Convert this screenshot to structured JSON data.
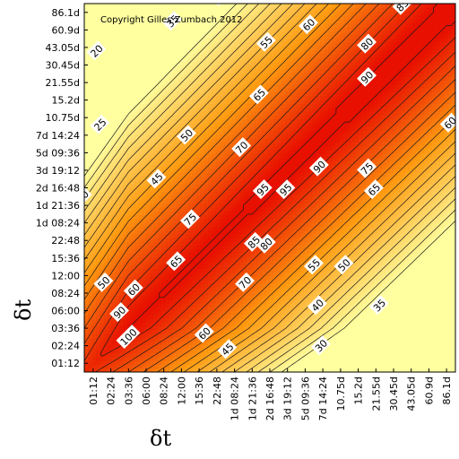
{
  "chart_data": {
    "type": "heatmap",
    "copyright": "Copyright Gilles Zumbach 2012",
    "xlabel": "δt",
    "ylabel": "δt",
    "ticks": [
      "01:12",
      "02:24",
      "03:36",
      "06:00",
      "08:24",
      "12:00",
      "15:36",
      "22:48",
      "1d 08:24",
      "1d 21:36",
      "2d 16:48",
      "3d 19:12",
      "5d 09:36",
      "7d 14:24",
      "10.75d",
      "15.2d",
      "21.55d",
      "30.45d",
      "43.05d",
      "60.9d",
      "86.1d"
    ],
    "contour_levels": [
      20,
      25,
      30,
      35,
      40,
      45,
      50,
      55,
      60,
      65,
      70,
      75,
      80,
      85,
      90,
      95,
      100
    ],
    "colorscale": {
      "low": "#ffffa0",
      "mid": "#ff9a10",
      "high": "#e81000"
    },
    "contour_labels": [
      {
        "value": "20",
        "x": 0.2,
        "y": 17.8
      },
      {
        "value": "35",
        "x": 4.5,
        "y": 19.5
      },
      {
        "value": "40",
        "x": 7.2,
        "y": 20.9
      },
      {
        "value": "55",
        "x": 9.8,
        "y": 18.3
      },
      {
        "value": "60",
        "x": 12.2,
        "y": 19.3
      },
      {
        "value": "85",
        "x": 17.5,
        "y": 20.4
      },
      {
        "value": "80",
        "x": 15.5,
        "y": 18.2
      },
      {
        "value": "90",
        "x": 15.5,
        "y": 16.3
      },
      {
        "value": "65",
        "x": 9.4,
        "y": 15.3
      },
      {
        "value": "25",
        "x": 0.4,
        "y": 13.6
      },
      {
        "value": "50",
        "x": 5.3,
        "y": 13.0
      },
      {
        "value": "70",
        "x": 8.4,
        "y": 12.3
      },
      {
        "value": "60",
        "x": 20.2,
        "y": 13.7
      },
      {
        "value": "90",
        "x": 12.8,
        "y": 11.2
      },
      {
        "value": "75",
        "x": 15.5,
        "y": 11.1
      },
      {
        "value": "65",
        "x": 15.9,
        "y": 9.9
      },
      {
        "value": "45",
        "x": 3.6,
        "y": 10.5
      },
      {
        "value": "95",
        "x": 9.6,
        "y": 9.9
      },
      {
        "value": "95",
        "x": 10.9,
        "y": 9.9
      },
      {
        "value": "30",
        "x": -0.6,
        "y": 9.5
      },
      {
        "value": "75",
        "x": 5.5,
        "y": 8.2
      },
      {
        "value": "85",
        "x": 9.1,
        "y": 6.9
      },
      {
        "value": "80",
        "x": 9.8,
        "y": 6.8
      },
      {
        "value": "65",
        "x": 4.7,
        "y": 5.8
      },
      {
        "value": "55",
        "x": 12.5,
        "y": 5.6
      },
      {
        "value": "50",
        "x": 14.2,
        "y": 5.6
      },
      {
        "value": "70",
        "x": 8.6,
        "y": 4.6
      },
      {
        "value": "50",
        "x": 0.6,
        "y": 4.6
      },
      {
        "value": "60",
        "x": 2.3,
        "y": 4.2
      },
      {
        "value": "90",
        "x": 1.5,
        "y": 2.9
      },
      {
        "value": "40",
        "x": 12.7,
        "y": 3.3
      },
      {
        "value": "35",
        "x": 16.2,
        "y": 3.3
      },
      {
        "value": "60",
        "x": 6.3,
        "y": 1.7
      },
      {
        "value": "100",
        "x": 2.0,
        "y": 1.5
      },
      {
        "value": "45",
        "x": 7.6,
        "y": 0.8
      },
      {
        "value": "30",
        "x": 12.9,
        "y": 1.0
      }
    ]
  }
}
